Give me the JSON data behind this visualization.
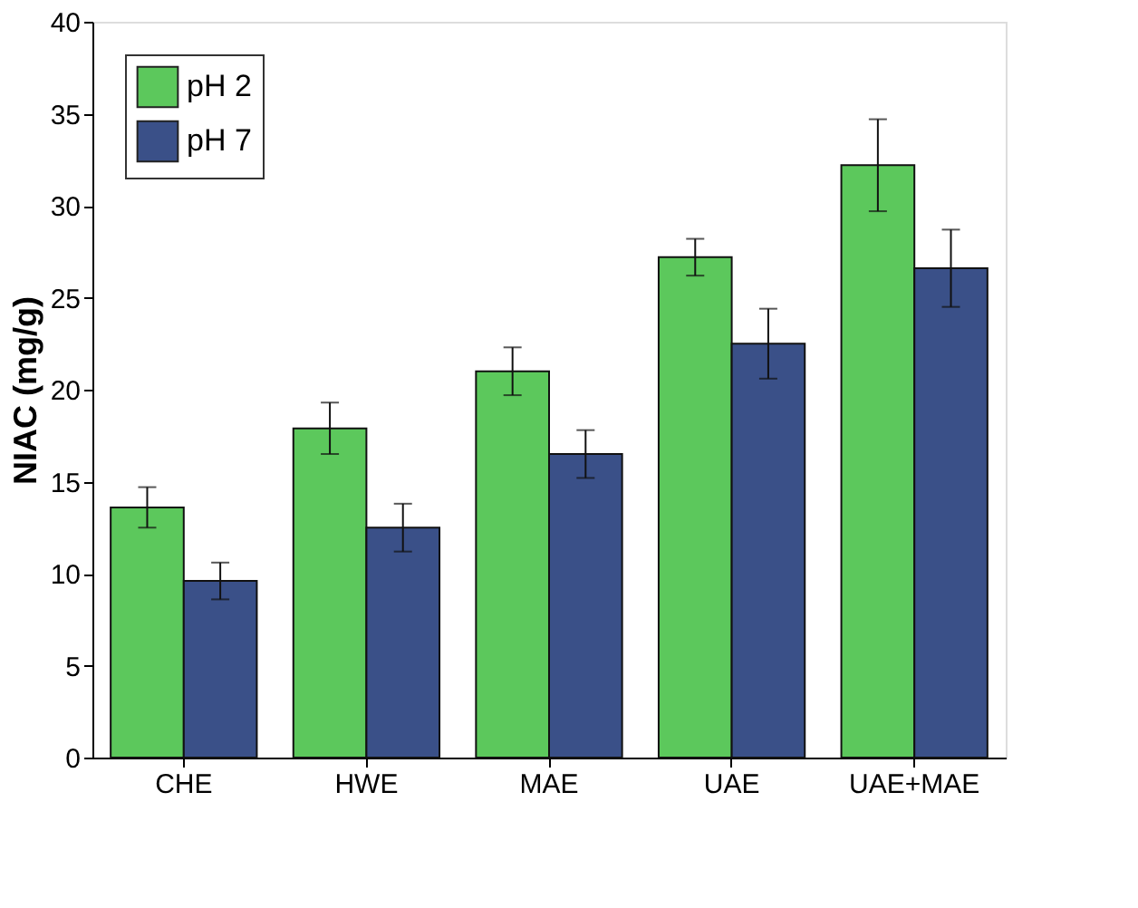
{
  "chart_data": {
    "type": "bar",
    "ylabel": "NIAC (mg/g)",
    "categories": [
      "CHE",
      "HWE",
      "MAE",
      "UAE",
      "UAE+MAE"
    ],
    "series": [
      {
        "name": "pH 2",
        "color": "#5cc85c",
        "values": [
          13.6,
          17.9,
          21.0,
          27.2,
          32.2
        ],
        "errors": [
          1.1,
          1.4,
          1.3,
          1.0,
          2.5
        ]
      },
      {
        "name": "pH 7",
        "color": "#3a5088",
        "values": [
          9.6,
          12.5,
          16.5,
          22.5,
          26.6
        ],
        "errors": [
          1.0,
          1.3,
          1.3,
          1.9,
          2.1
        ]
      }
    ],
    "ylim": [
      0,
      40
    ],
    "yticks": [
      0,
      5,
      10,
      15,
      20,
      25,
      30,
      35,
      40
    ],
    "grid": false,
    "legend": "top left"
  }
}
